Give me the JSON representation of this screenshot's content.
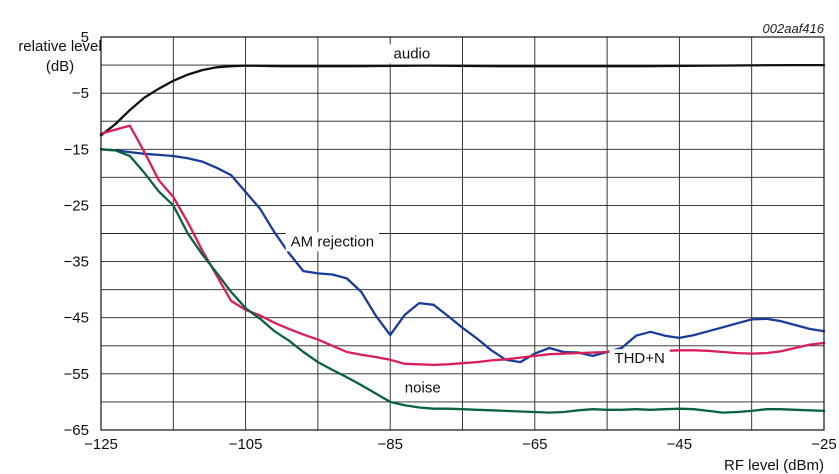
{
  "chart_data": {
    "type": "line",
    "reference": "002aaf416",
    "xlabel": "RF level (dBm)",
    "ylabel_line1": "relative level",
    "ylabel_line2": "(dB)",
    "xlim": [
      -125,
      -25
    ],
    "ylim": [
      -65,
      5
    ],
    "x_ticks": [
      -125,
      -105,
      -85,
      -65,
      -45,
      -25
    ],
    "x_tick_labels": [
      "−125",
      "−105",
      "−85",
      "−65",
      "−45",
      "−25"
    ],
    "y_ticks": [
      5,
      -5,
      -15,
      -25,
      -35,
      -45,
      -55,
      -65
    ],
    "y_tick_labels": [
      "5",
      "−5",
      "−15",
      "−25",
      "−35",
      "−45",
      "−55",
      "−65"
    ],
    "grid": true,
    "series": [
      {
        "name": "audio",
        "color": "#111111",
        "x": [
          -125,
          -123,
          -121,
          -119,
          -117,
          -115,
          -113,
          -111,
          -109,
          -107,
          -105,
          -100,
          -90,
          -80,
          -70,
          -60,
          -50,
          -40,
          -30,
          -25
        ],
        "y": [
          -12.5,
          -10.5,
          -8.0,
          -5.8,
          -4.2,
          -2.8,
          -1.7,
          -0.9,
          -0.4,
          -0.2,
          -0.1,
          -0.2,
          -0.2,
          -0.1,
          -0.2,
          -0.2,
          -0.2,
          -0.1,
          0.0,
          0.0
        ]
      },
      {
        "name": "AM rejection",
        "color": "#1a3c96",
        "x": [
          -125,
          -123,
          -121,
          -119,
          -117,
          -115,
          -113,
          -111,
          -109,
          -107,
          -105,
          -103,
          -101,
          -99,
          -97,
          -95,
          -93,
          -91,
          -89,
          -87,
          -85,
          -83,
          -81,
          -79,
          -77,
          -75,
          -73,
          -71,
          -69,
          -67,
          -65,
          -63,
          -61,
          -59,
          -57,
          -55,
          -53,
          -51,
          -49,
          -47,
          -45,
          -43,
          -41,
          -39,
          -37,
          -35,
          -33,
          -31,
          -29,
          -27,
          -25
        ],
        "y": [
          -15.0,
          -15.2,
          -15.5,
          -15.8,
          -16.0,
          -16.2,
          -16.6,
          -17.2,
          -18.3,
          -19.6,
          -22.6,
          -25.6,
          -29.8,
          -33.5,
          -36.7,
          -37.1,
          -37.3,
          -38.0,
          -40.4,
          -44.6,
          -48.1,
          -44.5,
          -42.4,
          -42.7,
          -44.7,
          -46.8,
          -48.7,
          -50.8,
          -52.5,
          -52.9,
          -51.4,
          -50.4,
          -51.1,
          -51.2,
          -51.8,
          -51.1,
          -50.4,
          -48.2,
          -47.5,
          -48.2,
          -48.6,
          -48.1,
          -47.4,
          -46.7,
          -46.0,
          -45.3,
          -45.2,
          -45.6,
          -46.3,
          -47.0,
          -47.4
        ]
      },
      {
        "name": "THD+N",
        "color": "#d81e5b",
        "x": [
          -125,
          -123,
          -121,
          -119,
          -117,
          -115,
          -113,
          -111,
          -109,
          -107,
          -105,
          -103,
          -101,
          -99,
          -97,
          -95,
          -93,
          -91,
          -89,
          -87,
          -85,
          -83,
          -81,
          -79,
          -77,
          -75,
          -73,
          -71,
          -69,
          -67,
          -65,
          -63,
          -61,
          -59,
          -57,
          -55,
          -53,
          -51,
          -49,
          -47,
          -45,
          -43,
          -41,
          -39,
          -37,
          -35,
          -33,
          -31,
          -29,
          -27,
          -25
        ],
        "y": [
          -12.2,
          -11.5,
          -10.8,
          -15.5,
          -20.5,
          -23.5,
          -28.0,
          -33.0,
          -37.5,
          -42.0,
          -43.6,
          -44.6,
          -45.9,
          -47.0,
          -48.0,
          -48.9,
          -50.0,
          -51.1,
          -51.6,
          -52.0,
          -52.5,
          -53.2,
          -53.3,
          -53.4,
          -53.3,
          -53.1,
          -52.9,
          -52.6,
          -52.4,
          -52.1,
          -51.8,
          -51.5,
          -51.4,
          -51.3,
          -51.2,
          -51.1,
          -51.0,
          -51.0,
          -51.0,
          -50.9,
          -50.8,
          -50.8,
          -50.9,
          -51.1,
          -51.3,
          -51.4,
          -51.3,
          -51.0,
          -50.4,
          -49.8,
          -49.5
        ]
      },
      {
        "name": "noise",
        "color": "#0b6140",
        "x": [
          -125,
          -123,
          -121,
          -119,
          -117,
          -115,
          -113,
          -111,
          -109,
          -107,
          -105,
          -103,
          -101,
          -99,
          -97,
          -95,
          -93,
          -91,
          -89,
          -87,
          -85,
          -83,
          -81,
          -79,
          -77,
          -75,
          -73,
          -71,
          -69,
          -67,
          -65,
          -63,
          -61,
          -59,
          -57,
          -55,
          -53,
          -51,
          -49,
          -47,
          -45,
          -43,
          -41,
          -39,
          -37,
          -35,
          -33,
          -31,
          -29,
          -27,
          -25
        ],
        "y": [
          -15.0,
          -15.2,
          -16.2,
          -19.2,
          -22.5,
          -25.0,
          -30.0,
          -33.7,
          -37.0,
          -40.4,
          -43.3,
          -45.2,
          -47.4,
          -49.1,
          -51.1,
          -52.9,
          -54.3,
          -55.6,
          -57.0,
          -58.5,
          -60.0,
          -60.6,
          -61.0,
          -61.2,
          -61.2,
          -61.3,
          -61.4,
          -61.5,
          -61.6,
          -61.7,
          -61.8,
          -61.9,
          -61.8,
          -61.5,
          -61.3,
          -61.4,
          -61.4,
          -61.3,
          -61.4,
          -61.3,
          -61.2,
          -61.3,
          -61.6,
          -61.9,
          -61.8,
          -61.6,
          -61.3,
          -61.3,
          -61.4,
          -61.5,
          -61.6
        ]
      }
    ],
    "annotations": [
      {
        "text": "audio",
        "x": -82,
        "y": 1.2
      },
      {
        "text": "AM rejection",
        "x": -93,
        "y": -32.3
      },
      {
        "text": "THD+N",
        "x": -50.5,
        "y": -53.1
      },
      {
        "text": "noise",
        "x": -80.5,
        "y": -58.3
      }
    ]
  }
}
